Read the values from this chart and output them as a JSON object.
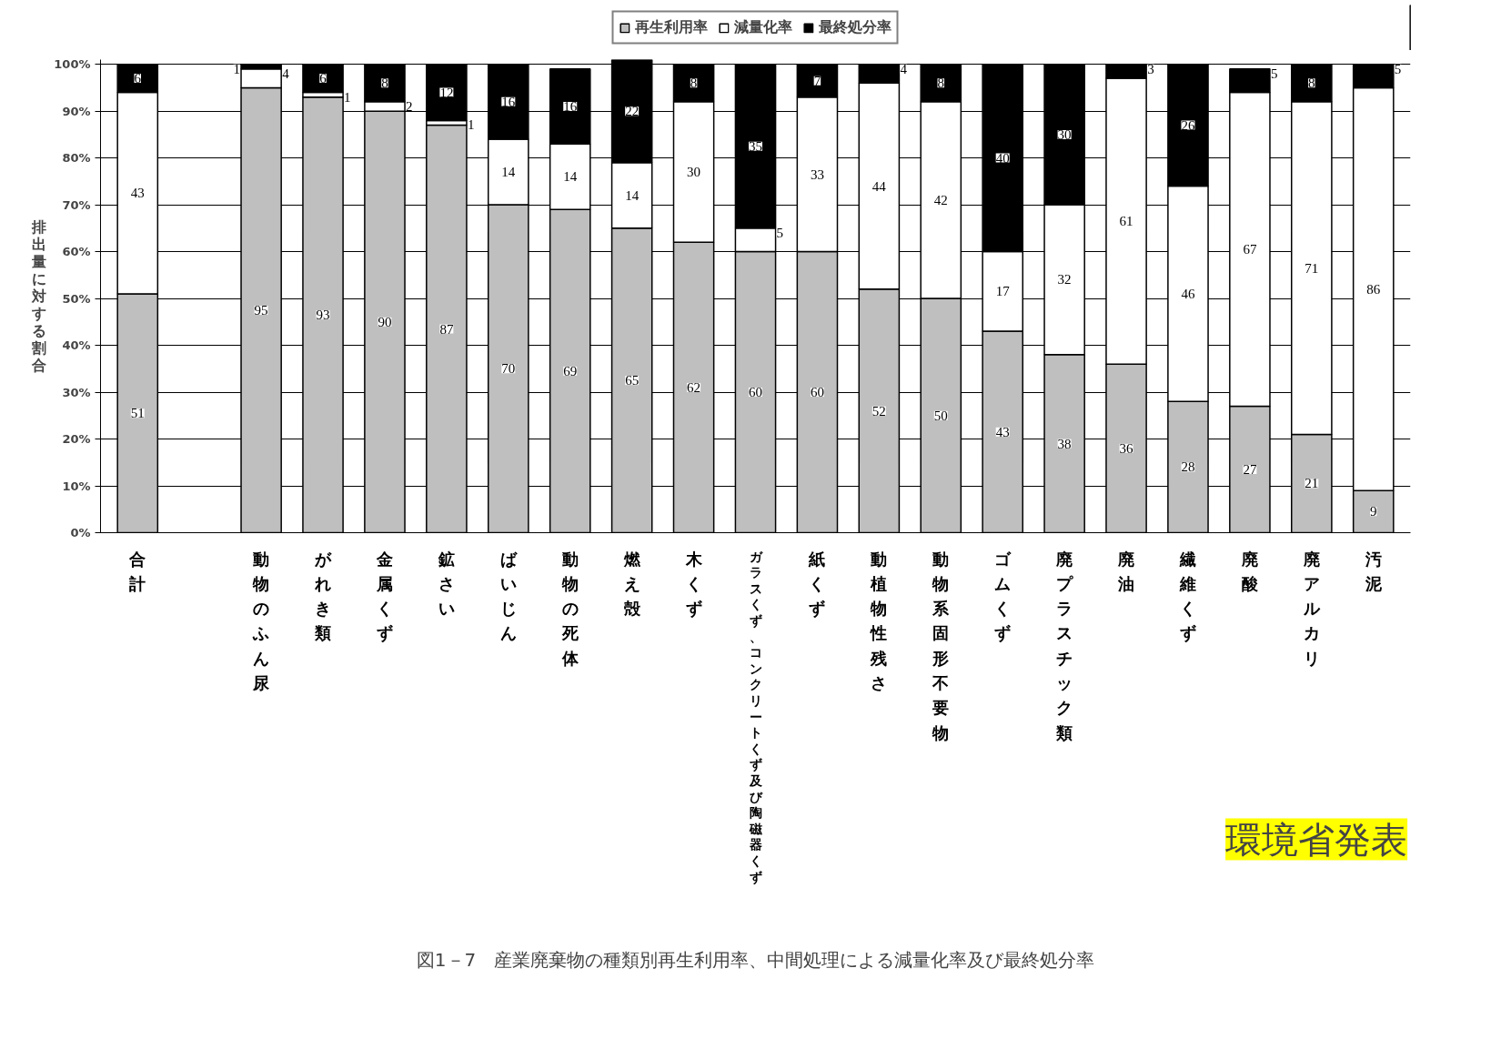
{
  "chart_data": {
    "type": "bar",
    "stacked": true,
    "title": "図1－7　産業廃棄物の種類別再生利用率、中間処理による減量化率及び最終処分率",
    "ylabel": "排出量に対する割合",
    "categories": [
      "合計",
      null,
      "動物のふん尿",
      "がれき類",
      "金属くず",
      "鉱さい",
      "ばいじん",
      "動物の死体",
      "燃え殻",
      "木くず",
      "ガラスくず、コンクリートくず及び陶磁器くず",
      "紙くず",
      "動植物性残さ",
      "動物系固形不要物",
      "ゴムくず",
      "廃プラスチック類",
      "廃油",
      "繊維くず",
      "廃酸",
      "廃アルカリ",
      "汚泥"
    ],
    "series": [
      {
        "name": "再生利用率",
        "color": "#bfbfbf",
        "values": [
          51,
          null,
          95,
          93,
          90,
          87,
          70,
          69,
          65,
          62,
          60,
          60,
          52,
          50,
          43,
          38,
          36,
          28,
          27,
          21,
          9
        ]
      },
      {
        "name": "減量化率",
        "color": "#ffffff",
        "values": [
          43,
          null,
          4,
          1,
          2,
          1,
          14,
          14,
          14,
          30,
          5,
          33,
          44,
          42,
          17,
          32,
          61,
          46,
          67,
          71,
          86
        ]
      },
      {
        "name": "最終処分率",
        "color": "#000000",
        "values": [
          6,
          null,
          1,
          6,
          8,
          12,
          16,
          16,
          22,
          8,
          35,
          7,
          4,
          8,
          40,
          30,
          3,
          26,
          5,
          8,
          5
        ]
      }
    ],
    "ylim": [
      0,
      101
    ],
    "yticks": [
      {
        "value": 0,
        "label": "0%"
      },
      {
        "value": 10,
        "label": "10%"
      },
      {
        "value": 20,
        "label": "20%"
      },
      {
        "value": 30,
        "label": "30%"
      },
      {
        "value": 40,
        "label": "40%"
      },
      {
        "value": 50,
        "label": "50%"
      },
      {
        "value": 60,
        "label": "60%"
      },
      {
        "value": 70,
        "label": "70%"
      },
      {
        "value": 80,
        "label": "80%"
      },
      {
        "value": 90,
        "label": "90%"
      },
      {
        "value": 100,
        "label": "100%"
      }
    ],
    "grid": "y",
    "legend": "top",
    "data_labels": true,
    "annotations": [
      "環境省発表"
    ]
  }
}
